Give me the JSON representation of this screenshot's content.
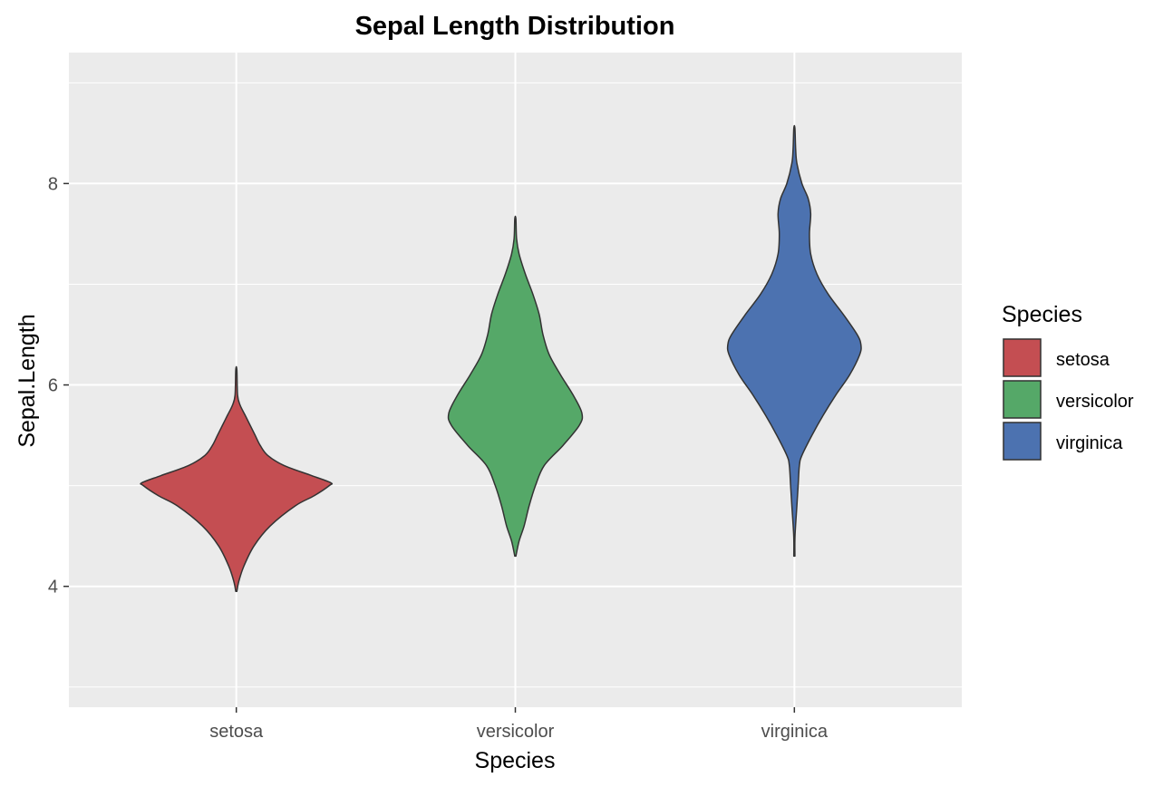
{
  "chart_data": {
    "type": "violin",
    "title": "Sepal Length Distribution",
    "xlabel": "Species",
    "ylabel": "Sepal.Length",
    "categories": [
      "setosa",
      "versicolor",
      "virginica"
    ],
    "ylim": [
      2.8,
      9.3
    ],
    "y_ticks": [
      4,
      6,
      8
    ],
    "y_minor_ticks": [
      3,
      5,
      7,
      9
    ],
    "grid": true,
    "panel_background": "#ebebeb",
    "legend": {
      "title": "Species",
      "position": "right",
      "entries": [
        "setosa",
        "versicolor",
        "virginica"
      ]
    },
    "series": [
      {
        "name": "setosa",
        "color": "#c44e52",
        "range": [
          4.3,
          5.8
        ],
        "density_profile": [
          {
            "y": 3.95,
            "w": 0.0
          },
          {
            "y": 4.05,
            "w": 0.02
          },
          {
            "y": 4.2,
            "w": 0.06
          },
          {
            "y": 4.4,
            "w": 0.14
          },
          {
            "y": 4.6,
            "w": 0.27
          },
          {
            "y": 4.8,
            "w": 0.47
          },
          {
            "y": 4.9,
            "w": 0.62
          },
          {
            "y": 5.0,
            "w": 0.74
          },
          {
            "y": 5.03,
            "w": 0.75
          },
          {
            "y": 5.1,
            "w": 0.6
          },
          {
            "y": 5.2,
            "w": 0.38
          },
          {
            "y": 5.3,
            "w": 0.25
          },
          {
            "y": 5.4,
            "w": 0.19
          },
          {
            "y": 5.5,
            "w": 0.15
          },
          {
            "y": 5.6,
            "w": 0.11
          },
          {
            "y": 5.7,
            "w": 0.07
          },
          {
            "y": 5.8,
            "w": 0.03
          },
          {
            "y": 5.9,
            "w": 0.01
          },
          {
            "y": 6.15,
            "w": 0.0
          }
        ]
      },
      {
        "name": "versicolor",
        "color": "#55a868",
        "range": [
          4.9,
          7.0
        ],
        "density_profile": [
          {
            "y": 4.3,
            "w": 0.0
          },
          {
            "y": 4.45,
            "w": 0.03
          },
          {
            "y": 4.6,
            "w": 0.07
          },
          {
            "y": 4.8,
            "w": 0.11
          },
          {
            "y": 5.0,
            "w": 0.16
          },
          {
            "y": 5.2,
            "w": 0.23
          },
          {
            "y": 5.4,
            "w": 0.38
          },
          {
            "y": 5.6,
            "w": 0.51
          },
          {
            "y": 5.72,
            "w": 0.53
          },
          {
            "y": 5.9,
            "w": 0.46
          },
          {
            "y": 6.1,
            "w": 0.36
          },
          {
            "y": 6.3,
            "w": 0.27
          },
          {
            "y": 6.5,
            "w": 0.22
          },
          {
            "y": 6.7,
            "w": 0.19
          },
          {
            "y": 6.9,
            "w": 0.14
          },
          {
            "y": 7.1,
            "w": 0.08
          },
          {
            "y": 7.3,
            "w": 0.03
          },
          {
            "y": 7.45,
            "w": 0.01
          },
          {
            "y": 7.65,
            "w": 0.0
          }
        ]
      },
      {
        "name": "virginica",
        "color": "#4c72b0",
        "range": [
          4.9,
          7.9
        ],
        "density_profile": [
          {
            "y": 4.3,
            "w": 0.0
          },
          {
            "y": 4.5,
            "w": 0.005
          },
          {
            "y": 4.8,
            "w": 0.02
          },
          {
            "y": 5.0,
            "w": 0.03
          },
          {
            "y": 5.2,
            "w": 0.04
          },
          {
            "y": 5.3,
            "w": 0.06
          },
          {
            "y": 5.5,
            "w": 0.14
          },
          {
            "y": 5.7,
            "w": 0.23
          },
          {
            "y": 5.9,
            "w": 0.33
          },
          {
            "y": 6.1,
            "w": 0.44
          },
          {
            "y": 6.3,
            "w": 0.52
          },
          {
            "y": 6.4,
            "w": 0.53
          },
          {
            "y": 6.5,
            "w": 0.5
          },
          {
            "y": 6.7,
            "w": 0.39
          },
          {
            "y": 6.9,
            "w": 0.27
          },
          {
            "y": 7.1,
            "w": 0.18
          },
          {
            "y": 7.3,
            "w": 0.13
          },
          {
            "y": 7.5,
            "w": 0.12
          },
          {
            "y": 7.7,
            "w": 0.13
          },
          {
            "y": 7.85,
            "w": 0.11
          },
          {
            "y": 8.0,
            "w": 0.06
          },
          {
            "y": 8.2,
            "w": 0.02
          },
          {
            "y": 8.35,
            "w": 0.01
          },
          {
            "y": 8.55,
            "w": 0.0
          }
        ]
      }
    ]
  }
}
